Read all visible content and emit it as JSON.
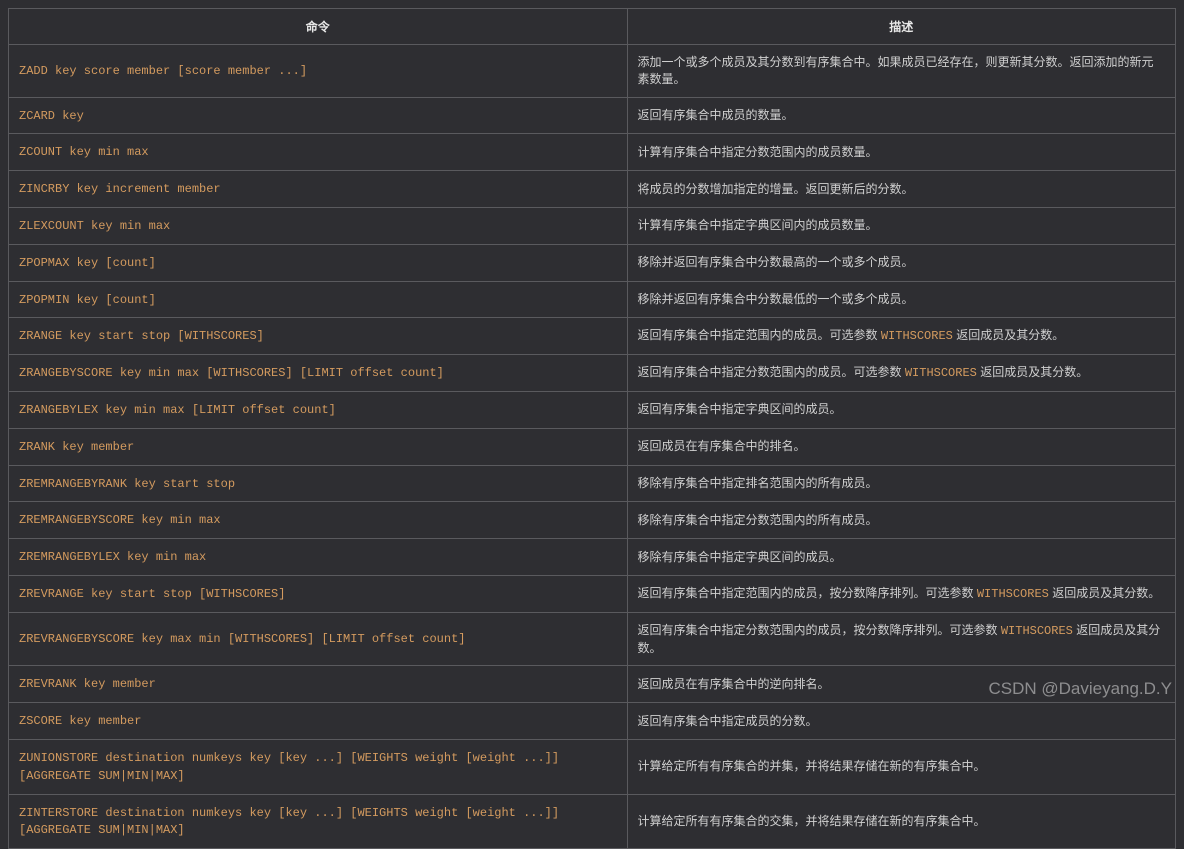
{
  "table": {
    "headers": {
      "command": "命令",
      "description": "描述"
    },
    "rows": [
      {
        "cmd": "ZADD key score member [score member ...]",
        "desc": "添加一个或多个成员及其分数到有序集合中。如果成员已经存在，则更新其分数。返回添加的新元素数量。"
      },
      {
        "cmd": "ZCARD key",
        "desc": "返回有序集合中成员的数量。"
      },
      {
        "cmd": "ZCOUNT key min max",
        "desc": "计算有序集合中指定分数范围内的成员数量。"
      },
      {
        "cmd": "ZINCRBY key increment member",
        "desc": "将成员的分数增加指定的增量。返回更新后的分数。"
      },
      {
        "cmd": "ZLEXCOUNT key min max",
        "desc": "计算有序集合中指定字典区间内的成员数量。"
      },
      {
        "cmd": "ZPOPMAX key [count]",
        "desc": "移除并返回有序集合中分数最高的一个或多个成员。"
      },
      {
        "cmd": "ZPOPMIN key [count]",
        "desc": "移除并返回有序集合中分数最低的一个或多个成员。"
      },
      {
        "cmd": "ZRANGE key start stop [WITHSCORES]",
        "desc_pre": "返回有序集合中指定范围内的成员。可选参数 ",
        "desc_code": "WITHSCORES",
        "desc_post": " 返回成员及其分数。"
      },
      {
        "cmd": "ZRANGEBYSCORE key min max [WITHSCORES] [LIMIT offset count]",
        "desc_pre": "返回有序集合中指定分数范围内的成员。可选参数 ",
        "desc_code": "WITHSCORES",
        "desc_post": " 返回成员及其分数。"
      },
      {
        "cmd": "ZRANGEBYLEX key min max [LIMIT offset count]",
        "desc": "返回有序集合中指定字典区间的成员。"
      },
      {
        "cmd": "ZRANK key member",
        "desc": "返回成员在有序集合中的排名。"
      },
      {
        "cmd": "ZREMRANGEBYRANK key start stop",
        "desc": "移除有序集合中指定排名范围内的所有成员。"
      },
      {
        "cmd": "ZREMRANGEBYSCORE key min max",
        "desc": "移除有序集合中指定分数范围内的所有成员。"
      },
      {
        "cmd": "ZREMRANGEBYLEX key min max",
        "desc": "移除有序集合中指定字典区间的成员。"
      },
      {
        "cmd": "ZREVRANGE key start stop [WITHSCORES]",
        "desc_pre": "返回有序集合中指定范围内的成员，按分数降序排列。可选参数 ",
        "desc_code": "WITHSCORES",
        "desc_post": " 返回成员及其分数。"
      },
      {
        "cmd": "ZREVRANGEBYSCORE key max min [WITHSCORES] [LIMIT offset count]",
        "desc_pre": "返回有序集合中指定分数范围内的成员，按分数降序排列。可选参数 ",
        "desc_code": "WITHSCORES",
        "desc_post": " 返回成员及其分数。"
      },
      {
        "cmd": "ZREVRANK key member",
        "desc": "返回成员在有序集合中的逆向排名。"
      },
      {
        "cmd": "ZSCORE key member",
        "desc": "返回有序集合中指定成员的分数。"
      },
      {
        "cmd": "ZUNIONSTORE destination numkeys key [key ...] [WEIGHTS weight [weight ...]] [AGGREGATE SUM|MIN|MAX]",
        "desc": "计算给定所有有序集合的并集，并将结果存储在新的有序集合中。"
      },
      {
        "cmd": "ZINTERSTORE destination numkeys key [key ...] [WEIGHTS weight [weight ...]] [AGGREGATE SUM|MIN|MAX]",
        "desc": "计算给定所有有序集合的交集，并将结果存储在新的有序集合中。"
      }
    ]
  },
  "colors": {
    "background": "#2e2e32",
    "border": "#5a5a5e",
    "header_text": "#e8e8e8",
    "cmd_text": "#d49b5f",
    "desc_text": "#d0d0d0"
  },
  "watermark": "CSDN @Davieyang.D.Y"
}
